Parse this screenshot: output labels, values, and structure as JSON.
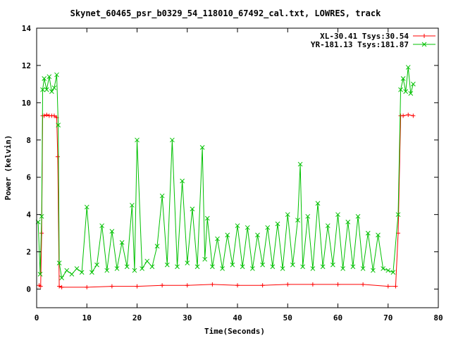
{
  "chart_data": {
    "type": "line",
    "title": "Skynet_60465_psr_b0329_54_118010_67492_cal.txt, LOWRES, track",
    "xlabel": "Time(Seconds)",
    "ylabel": "Power (kelvin)",
    "xlim": [
      0,
      80
    ],
    "ylim": [
      -1,
      14
    ],
    "xticks": [
      "0",
      "10",
      "20",
      "30",
      "40",
      "50",
      "60",
      "70",
      "80"
    ],
    "yticks": [
      "0",
      "2",
      "4",
      "6",
      "8",
      "10",
      "12",
      "14"
    ],
    "grid": false,
    "legend_position": "top-right",
    "series": [
      {
        "name": "XL-30.41 Tsys:30.54",
        "color": "#ff0000",
        "marker": "plus",
        "x": [
          0.5,
          0.8,
          1.0,
          1.2,
          1.5,
          2.0,
          2.5,
          3.0,
          3.5,
          4.0,
          4.2,
          4.5,
          5,
          10,
          15,
          20,
          25,
          30,
          35,
          40,
          45,
          50,
          55,
          60,
          65,
          70,
          71.5,
          72,
          72.5,
          73,
          74,
          75
        ],
        "y": [
          0.2,
          0.15,
          3.0,
          9.3,
          9.3,
          9.35,
          9.3,
          9.3,
          9.3,
          9.2,
          7.1,
          0.15,
          0.1,
          0.1,
          0.15,
          0.15,
          0.2,
          0.2,
          0.25,
          0.2,
          0.2,
          0.25,
          0.25,
          0.25,
          0.25,
          0.15,
          0.15,
          3.0,
          9.3,
          9.3,
          9.35,
          9.3
        ]
      },
      {
        "name": "YR-181.13 Tsys:181.87",
        "color": "#00c000",
        "marker": "x",
        "x": [
          0.3,
          0.7,
          1.0,
          1.2,
          1.5,
          2.0,
          2.5,
          3.0,
          3.5,
          4.0,
          4.3,
          4.5,
          5,
          6,
          7,
          8,
          9,
          10,
          11,
          12,
          13,
          14,
          15,
          16,
          17,
          18,
          19,
          19.5,
          20,
          21,
          22,
          23,
          24,
          25,
          26,
          27,
          28,
          29,
          30,
          31,
          32,
          33,
          33.5,
          34,
          35,
          36,
          37,
          38,
          39,
          40,
          41,
          42,
          43,
          44,
          45,
          46,
          47,
          48,
          49,
          50,
          51,
          52,
          52.5,
          53,
          54,
          55,
          56,
          57,
          58,
          59,
          60,
          61,
          62,
          63,
          64,
          65,
          66,
          67,
          68,
          69,
          70,
          71,
          72,
          72.5,
          73,
          73.5,
          74,
          74.5,
          75
        ],
        "y": [
          3.6,
          0.8,
          3.9,
          10.7,
          11.3,
          10.7,
          11.4,
          10.6,
          10.8,
          11.5,
          8.8,
          1.4,
          0.6,
          1.0,
          0.8,
          1.1,
          0.9,
          4.4,
          0.9,
          1.3,
          3.4,
          1.0,
          3.1,
          1.1,
          2.5,
          1.2,
          4.5,
          1.0,
          8.0,
          1.1,
          1.5,
          1.2,
          2.3,
          5.0,
          1.3,
          8.0,
          1.2,
          5.8,
          1.4,
          4.3,
          1.2,
          7.6,
          1.6,
          3.8,
          1.2,
          2.7,
          1.1,
          2.9,
          1.3,
          3.4,
          1.2,
          3.3,
          1.1,
          2.9,
          1.3,
          3.3,
          1.2,
          3.5,
          1.1,
          4.0,
          1.3,
          3.7,
          6.7,
          1.2,
          3.9,
          1.1,
          4.6,
          1.2,
          3.4,
          1.3,
          4.0,
          1.1,
          3.6,
          1.2,
          3.9,
          1.1,
          3.0,
          1.0,
          2.9,
          1.1,
          1.0,
          0.9,
          4.0,
          10.7,
          11.3,
          10.6,
          11.9,
          10.5,
          11.0
        ]
      }
    ]
  }
}
